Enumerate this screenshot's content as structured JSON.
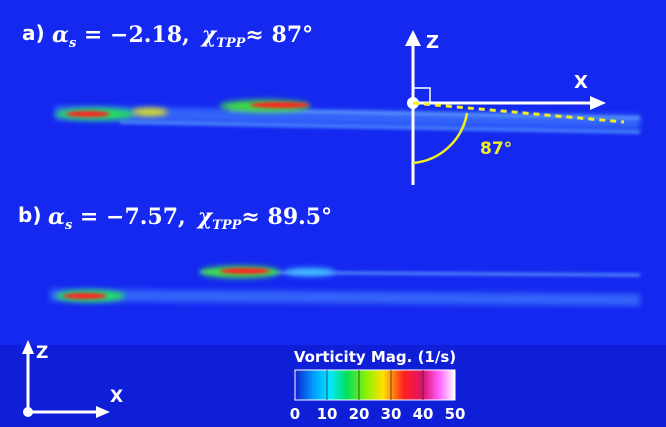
{
  "panel_a": {
    "label": "a)",
    "alpha_sym": "α",
    "alpha_sub": "s",
    "alpha_val": " = −2.18,",
    "chi_sym": "χ",
    "chi_sub": "TPP",
    "chi_val": "≈ 87°",
    "axis_z": "Z",
    "axis_x": "X",
    "angle": "87°"
  },
  "panel_b": {
    "label": "b)",
    "alpha_sym": "α",
    "alpha_sub": "s",
    "alpha_val": " = −7.57,",
    "chi_sym": "χ",
    "chi_sub": "TPP",
    "chi_val": "≈ 89.5°"
  },
  "frame_axes": {
    "z": "Z",
    "x": "X"
  },
  "colorbar": {
    "title": "Vorticity Mag. (1/s)",
    "ticks": [
      "0",
      "10",
      "20",
      "30",
      "40",
      "50"
    ]
  }
}
